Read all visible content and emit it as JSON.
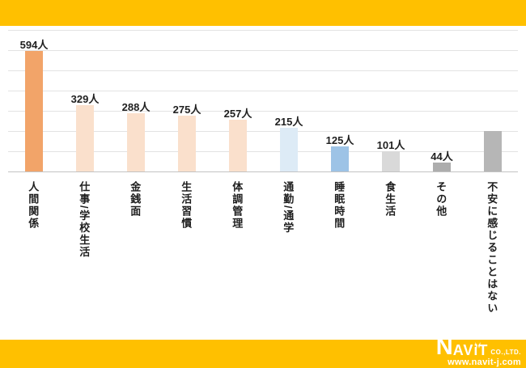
{
  "chart_data": {
    "type": "bar",
    "title": "",
    "categories": [
      "人間関係",
      "仕事/学校生活",
      "金銭面",
      "生活習慣",
      "体調管理",
      "通勤/通学",
      "睡眠時間",
      "食生活",
      "その他",
      "不安に感じることはない"
    ],
    "values": [
      594,
      329,
      288,
      275,
      257,
      215,
      125,
      101,
      44,
      200
    ],
    "data_labels": [
      "594人",
      "329人",
      "288人",
      "275人",
      "257人",
      "215人",
      "125人",
      "101人",
      "44人",
      ""
    ],
    "unit": "人",
    "ylim": [
      0,
      700
    ],
    "gridline_step": 100,
    "grid": true,
    "legend_position": "none",
    "bar_colors": [
      "#F2A469",
      "#FAE0CC",
      "#FAE0CC",
      "#FAE0CC",
      "#FAE0CC",
      "#DDEBF6",
      "#9DC3E6",
      "#D9D9D9",
      "#ADADAD",
      "#B6B6B6"
    ]
  },
  "theme": {
    "accent_band_color": "#FFC000",
    "gridline_color": "#E3E3E3",
    "axis_line_color": "#C3C3C3",
    "label_color": "#1F1F1F"
  },
  "footer": {
    "logo_n": "N",
    "logo_av": "AV",
    "logo_i": "i",
    "logo_t": "T",
    "logo_suffix": "CO.,LTD.",
    "url": "www.navit-j.com",
    "ears_icon": "rabbit-ears-icon"
  }
}
